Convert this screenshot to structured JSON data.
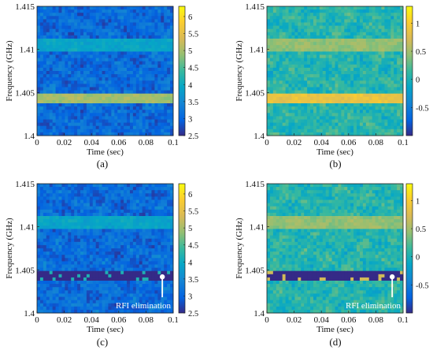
{
  "chart_data": [
    {
      "type": "heatmap",
      "panel_label": "(a)",
      "xlabel": "Time (sec)",
      "ylabel": "Frequency (GHz)",
      "xlim": [
        0,
        0.1
      ],
      "ylim": [
        1.4,
        1.415
      ],
      "x_ticks": [
        "0",
        "0.02",
        "0.04",
        "0.06",
        "0.08",
        "0.1"
      ],
      "y_ticks": [
        "1.4",
        "1.405",
        "1.41",
        "1.415"
      ],
      "colorbar": {
        "min": 2.5,
        "max": 6.3,
        "ticks": [
          "6",
          "5.5",
          "5",
          "4.5",
          "4",
          "3.5",
          "3",
          "2.5"
        ],
        "tick_values": [
          6,
          5.5,
          5,
          4.5,
          4,
          3.5,
          3,
          2.5
        ]
      },
      "colormap": "parula",
      "features": [
        {
          "band_ghz": [
            1.4037,
            1.4047
          ],
          "level": 5.0,
          "note": "strong RFI band"
        },
        {
          "band_ghz": [
            1.4097,
            1.4113
          ],
          "level": 3.9,
          "note": "weak RFI band"
        }
      ],
      "background_level": 3.1,
      "annotation": ""
    },
    {
      "type": "heatmap",
      "panel_label": "(b)",
      "xlabel": "Time (sec)",
      "ylabel": "Frequency (GHz)",
      "xlim": [
        0,
        0.1
      ],
      "ylim": [
        1.4,
        1.415
      ],
      "x_ticks": [
        "0",
        "0.02",
        "0.04",
        "0.06",
        "0.08",
        "0.1"
      ],
      "y_ticks": [
        "1.4",
        "1.405",
        "1.41",
        "1.415"
      ],
      "colorbar": {
        "min": -1,
        "max": 1.3,
        "ticks": [
          "1",
          "0.5",
          "0",
          "-0.5"
        ],
        "tick_values": [
          1,
          0.5,
          0,
          -0.5
        ]
      },
      "colormap": "parula",
      "features": [
        {
          "band_ghz": [
            1.4037,
            1.4047
          ],
          "level": 0.85,
          "note": "strong RFI band"
        },
        {
          "band_ghz": [
            1.4097,
            1.4113
          ],
          "level": 0.45,
          "note": "weak RFI band"
        }
      ],
      "background_level": 0.05,
      "annotation": ""
    },
    {
      "type": "heatmap",
      "panel_label": "(c)",
      "xlabel": "Time (sec)",
      "ylabel": "Frequency (GHz)",
      "xlim": [
        0,
        0.1
      ],
      "ylim": [
        1.4,
        1.415
      ],
      "x_ticks": [
        "0",
        "0.02",
        "0.04",
        "0.06",
        "0.08",
        "0.1"
      ],
      "y_ticks": [
        "1.4",
        "1.405",
        "1.41",
        "1.415"
      ],
      "colorbar": {
        "min": 2.5,
        "max": 6.3,
        "ticks": [
          "6",
          "5.5",
          "5",
          "4.5",
          "4",
          "3.5",
          "3",
          "2.5"
        ],
        "tick_values": [
          6,
          5.5,
          5,
          4.5,
          4,
          3.5,
          3,
          2.5
        ]
      },
      "colormap": "parula",
      "features": [
        {
          "band_ghz": [
            1.4037,
            1.4047
          ],
          "level": 2.5,
          "note": "eliminated RFI band"
        },
        {
          "band_ghz": [
            1.4097,
            1.4113
          ],
          "level": 3.9,
          "note": "weak RFI band"
        }
      ],
      "background_level": 3.1,
      "annotation": "RFI elimination"
    },
    {
      "type": "heatmap",
      "panel_label": "(d)",
      "xlabel": "Time (sec)",
      "ylabel": "Frequency (GHz)",
      "xlim": [
        0,
        0.1
      ],
      "ylim": [
        1.4,
        1.415
      ],
      "x_ticks": [
        "0",
        "0.02",
        "0.04",
        "0.06",
        "0.08",
        "0.1"
      ],
      "y_ticks": [
        "1.4",
        "1.405",
        "1.41",
        "1.415"
      ],
      "colorbar": {
        "min": -1,
        "max": 1.3,
        "ticks": [
          "1",
          "0.5",
          "0",
          "-0.5"
        ],
        "tick_values": [
          1,
          0.5,
          0,
          -0.5
        ]
      },
      "colormap": "parula",
      "features": [
        {
          "band_ghz": [
            1.4037,
            1.4047
          ],
          "level": -1.0,
          "note": "eliminated RFI band"
        },
        {
          "band_ghz": [
            1.4097,
            1.4113
          ],
          "level": 0.45,
          "note": "weak RFI band"
        }
      ],
      "background_level": 0.05,
      "annotation": "RFI elimination"
    }
  ]
}
